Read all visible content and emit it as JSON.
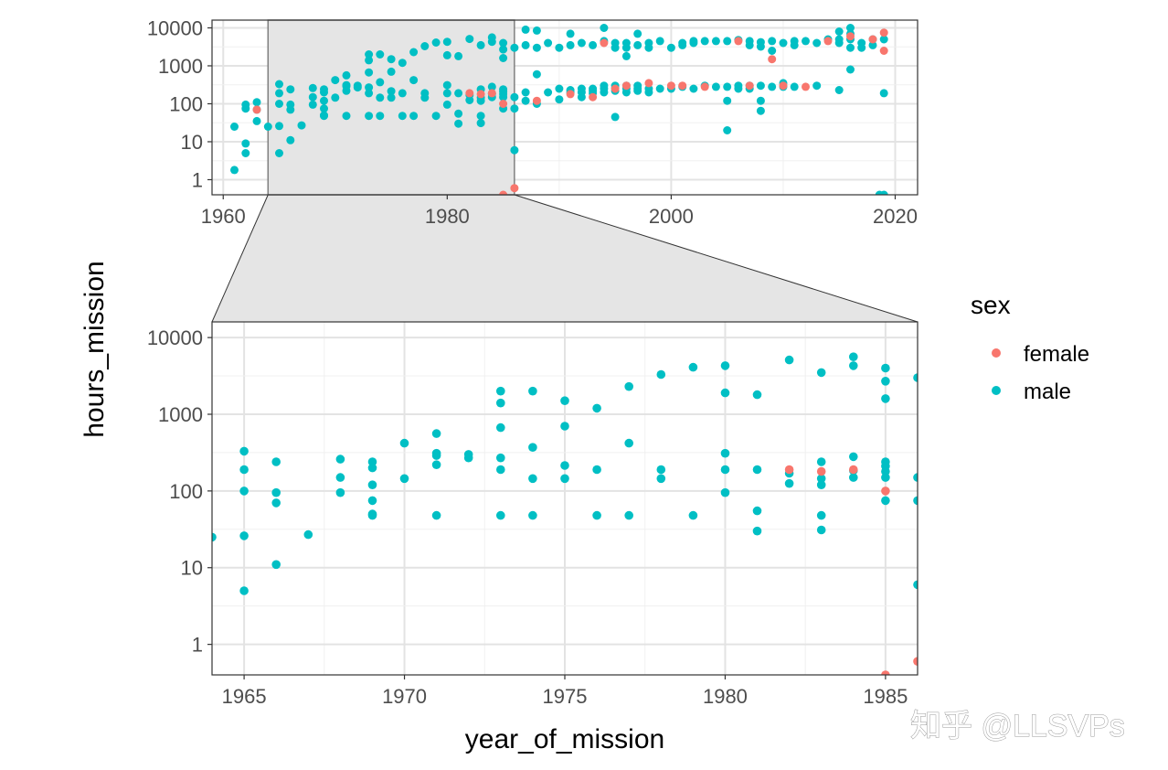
{
  "chart_data": {
    "type": "scatter",
    "title": "",
    "xlabel": "year_of_mission",
    "ylabel": "hours_mission",
    "y_scale": "log10",
    "grid": true,
    "legend": {
      "title": "sex",
      "position": "right",
      "entries": [
        {
          "name": "female",
          "color": "#F8766D"
        },
        {
          "name": "male",
          "color": "#00BFC4"
        }
      ]
    },
    "overview": {
      "xlim": [
        1959,
        2022
      ],
      "ylim": [
        0.4,
        16000
      ],
      "x_ticks": [
        "1960",
        "1980",
        "2000",
        "2020"
      ],
      "y_ticks": [
        "1",
        "10",
        "100",
        "1000",
        "10000"
      ],
      "zoom_region": {
        "x": [
          1964,
          1986
        ]
      }
    },
    "zoom": {
      "xlim": [
        1964,
        1986
      ],
      "ylim": [
        0.4,
        16000
      ],
      "x_ticks": [
        "1965",
        "1970",
        "1975",
        "1980",
        "1985"
      ],
      "y_ticks": [
        "1",
        "10",
        "100",
        "1000",
        "10000"
      ]
    },
    "series": [
      {
        "name": "male",
        "color": "#00BFC4",
        "points": [
          [
            1961,
            1.8
          ],
          [
            1961,
            25
          ],
          [
            1962,
            5
          ],
          [
            1962,
            9
          ],
          [
            1962,
            75
          ],
          [
            1962,
            95
          ],
          [
            1963,
            35
          ],
          [
            1963,
            110
          ],
          [
            1963,
            70
          ],
          [
            1964,
            25
          ],
          [
            1965,
            330
          ],
          [
            1965,
            190
          ],
          [
            1965,
            100
          ],
          [
            1965,
            26
          ],
          [
            1965,
            5
          ],
          [
            1966,
            240
          ],
          [
            1966,
            95
          ],
          [
            1966,
            70
          ],
          [
            1966,
            11
          ],
          [
            1967,
            27
          ],
          [
            1968,
            260
          ],
          [
            1968,
            150
          ],
          [
            1968,
            95
          ],
          [
            1969,
            240
          ],
          [
            1969,
            200
          ],
          [
            1969,
            120
          ],
          [
            1969,
            75
          ],
          [
            1969,
            50
          ],
          [
            1969,
            48
          ],
          [
            1970,
            420
          ],
          [
            1970,
            145
          ],
          [
            1971,
            560
          ],
          [
            1971,
            310
          ],
          [
            1971,
            290
          ],
          [
            1971,
            220
          ],
          [
            1971,
            48
          ],
          [
            1972,
            300
          ],
          [
            1972,
            270
          ],
          [
            1973,
            2000
          ],
          [
            1973,
            1400
          ],
          [
            1973,
            670
          ],
          [
            1973,
            270
          ],
          [
            1973,
            190
          ],
          [
            1973,
            48
          ],
          [
            1974,
            2000
          ],
          [
            1974,
            370
          ],
          [
            1974,
            145
          ],
          [
            1974,
            48
          ],
          [
            1975,
            1500
          ],
          [
            1975,
            700
          ],
          [
            1975,
            215
          ],
          [
            1975,
            145
          ],
          [
            1976,
            1200
          ],
          [
            1976,
            190
          ],
          [
            1976,
            48
          ],
          [
            1977,
            2300
          ],
          [
            1977,
            420
          ],
          [
            1977,
            48
          ],
          [
            1978,
            3300
          ],
          [
            1978,
            190
          ],
          [
            1978,
            145
          ],
          [
            1979,
            4100
          ],
          [
            1979,
            48
          ],
          [
            1980,
            4300
          ],
          [
            1980,
            1900
          ],
          [
            1980,
            310
          ],
          [
            1980,
            190
          ],
          [
            1980,
            95
          ],
          [
            1981,
            1800
          ],
          [
            1981,
            190
          ],
          [
            1981,
            55
          ],
          [
            1981,
            30
          ],
          [
            1982,
            5100
          ],
          [
            1982,
            170
          ],
          [
            1982,
            125
          ],
          [
            1983,
            3500
          ],
          [
            1983,
            240
          ],
          [
            1983,
            145
          ],
          [
            1983,
            120
          ],
          [
            1983,
            48
          ],
          [
            1983,
            31
          ],
          [
            1984,
            5600
          ],
          [
            1984,
            4300
          ],
          [
            1984,
            280
          ],
          [
            1984,
            185
          ],
          [
            1984,
            150
          ],
          [
            1985,
            4000
          ],
          [
            1985,
            2700
          ],
          [
            1985,
            1600
          ],
          [
            1985,
            240
          ],
          [
            1985,
            210
          ],
          [
            1985,
            180
          ],
          [
            1985,
            150
          ],
          [
            1985,
            75
          ],
          [
            1986,
            3000
          ],
          [
            1986,
            150
          ],
          [
            1986,
            75
          ],
          [
            1986,
            6
          ],
          [
            1987,
            9000
          ],
          [
            1987,
            3500
          ],
          [
            1987,
            200
          ],
          [
            1987,
            120
          ],
          [
            1988,
            8500
          ],
          [
            1988,
            3000
          ],
          [
            1988,
            600
          ],
          [
            1988,
            100
          ],
          [
            1989,
            4000
          ],
          [
            1989,
            200
          ],
          [
            1990,
            3000
          ],
          [
            1990,
            250
          ],
          [
            1990,
            130
          ],
          [
            1991,
            7000
          ],
          [
            1991,
            3500
          ],
          [
            1991,
            230
          ],
          [
            1991,
            200
          ],
          [
            1992,
            4000
          ],
          [
            1992,
            250
          ],
          [
            1992,
            200
          ],
          [
            1992,
            150
          ],
          [
            1993,
            3500
          ],
          [
            1993,
            250
          ],
          [
            1993,
            220
          ],
          [
            1993,
            190
          ],
          [
            1994,
            10000
          ],
          [
            1994,
            4500
          ],
          [
            1994,
            300
          ],
          [
            1994,
            250
          ],
          [
            1994,
            200
          ],
          [
            1995,
            4000
          ],
          [
            1995,
            3000
          ],
          [
            1995,
            300
          ],
          [
            1995,
            260
          ],
          [
            1995,
            220
          ],
          [
            1995,
            45
          ],
          [
            1996,
            4000
          ],
          [
            1996,
            3000
          ],
          [
            1996,
            1800
          ],
          [
            1996,
            300
          ],
          [
            1996,
            250
          ],
          [
            1996,
            200
          ],
          [
            1997,
            7000
          ],
          [
            1997,
            3500
          ],
          [
            1997,
            300
          ],
          [
            1997,
            250
          ],
          [
            1997,
            220
          ],
          [
            1998,
            4000
          ],
          [
            1998,
            3000
          ],
          [
            1998,
            250
          ],
          [
            1998,
            200
          ],
          [
            1999,
            4500
          ],
          [
            1999,
            250
          ],
          [
            2000,
            3000
          ],
          [
            2000,
            250
          ],
          [
            2001,
            4000
          ],
          [
            2001,
            3500
          ],
          [
            2001,
            280
          ],
          [
            2002,
            4500
          ],
          [
            2002,
            4000
          ],
          [
            2002,
            250
          ],
          [
            2003,
            4500
          ],
          [
            2003,
            300
          ],
          [
            2004,
            4500
          ],
          [
            2004,
            280
          ],
          [
            2005,
            4500
          ],
          [
            2005,
            280
          ],
          [
            2005,
            120
          ],
          [
            2005,
            20
          ],
          [
            2006,
            4800
          ],
          [
            2006,
            300
          ],
          [
            2006,
            250
          ],
          [
            2007,
            4500
          ],
          [
            2007,
            3500
          ],
          [
            2007,
            300
          ],
          [
            2007,
            250
          ],
          [
            2008,
            4200
          ],
          [
            2008,
            3200
          ],
          [
            2008,
            300
          ],
          [
            2008,
            120
          ],
          [
            2008,
            65
          ],
          [
            2009,
            4500
          ],
          [
            2009,
            2500
          ],
          [
            2009,
            280
          ],
          [
            2010,
            4000
          ],
          [
            2010,
            350
          ],
          [
            2010,
            280
          ],
          [
            2011,
            4500
          ],
          [
            2011,
            3500
          ],
          [
            2011,
            280
          ],
          [
            2012,
            4500
          ],
          [
            2013,
            4000
          ],
          [
            2013,
            300
          ],
          [
            2014,
            5000
          ],
          [
            2015,
            8000
          ],
          [
            2015,
            5000
          ],
          [
            2015,
            4000
          ],
          [
            2015,
            230
          ],
          [
            2016,
            10000
          ],
          [
            2016,
            7000
          ],
          [
            2016,
            5000
          ],
          [
            2016,
            3000
          ],
          [
            2016,
            800
          ],
          [
            2017,
            4000
          ],
          [
            2017,
            3000
          ],
          [
            2018,
            5000
          ],
          [
            2018,
            3500
          ],
          [
            2019,
            5000
          ],
          [
            2019,
            190
          ],
          [
            2019,
            0.4
          ],
          [
            2018.6,
            0.4
          ]
        ]
      },
      {
        "name": "female",
        "color": "#F8766D",
        "points": [
          [
            1963,
            70
          ],
          [
            1982,
            190
          ],
          [
            1983,
            180
          ],
          [
            1984,
            190
          ],
          [
            1985,
            100
          ],
          [
            1985,
            0.4
          ],
          [
            1986,
            0.6
          ],
          [
            1988,
            120
          ],
          [
            1991,
            180
          ],
          [
            1993,
            150
          ],
          [
            1994,
            4000
          ],
          [
            1995,
            250
          ],
          [
            1996,
            300
          ],
          [
            1998,
            350
          ],
          [
            2000,
            300
          ],
          [
            2001,
            300
          ],
          [
            2003,
            280
          ],
          [
            2006,
            4500
          ],
          [
            2007,
            300
          ],
          [
            2009,
            1500
          ],
          [
            2010,
            300
          ],
          [
            2012,
            280
          ],
          [
            2014,
            4500
          ],
          [
            2016,
            6000
          ],
          [
            2018,
            5000
          ],
          [
            2019,
            7500
          ],
          [
            2019,
            2500
          ]
        ]
      }
    ]
  },
  "watermark": "知乎 @LLSVPs"
}
